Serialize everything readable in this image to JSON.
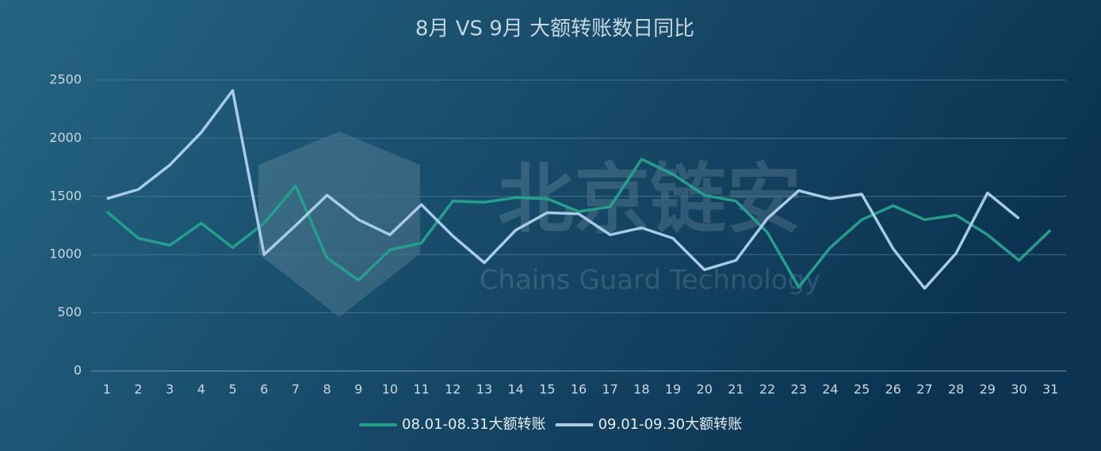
{
  "chart_data": {
    "type": "line",
    "title": "8月 VS 9月 大额转账数日同比",
    "categories": [
      "1",
      "2",
      "3",
      "4",
      "5",
      "6",
      "7",
      "8",
      "9",
      "10",
      "11",
      "12",
      "13",
      "14",
      "15",
      "16",
      "17",
      "18",
      "19",
      "20",
      "21",
      "22",
      "23",
      "24",
      "25",
      "26",
      "27",
      "28",
      "29",
      "30",
      "31"
    ],
    "series": [
      {
        "name": "08.01-08.31大额转账",
        "color": "#23a08a",
        "values": [
          1370,
          1140,
          1080,
          1270,
          1060,
          1270,
          1590,
          970,
          780,
          1040,
          1100,
          1460,
          1450,
          1490,
          1480,
          1370,
          1410,
          1820,
          1690,
          1510,
          1460,
          1190,
          720,
          1060,
          1300,
          1420,
          1300,
          1340,
          1170,
          950,
          1210
        ]
      },
      {
        "name": "09.01-09.30大额转账",
        "color": "#a9cbe8",
        "values": [
          1480,
          1560,
          1770,
          2050,
          2410,
          1000,
          1250,
          1510,
          1300,
          1170,
          1430,
          1160,
          930,
          1210,
          1360,
          1350,
          1170,
          1230,
          1140,
          870,
          950,
          1310,
          1550,
          1480,
          1520,
          1050,
          710,
          1010,
          1530,
          1310,
          null
        ]
      }
    ],
    "ylim": [
      0,
      2500
    ],
    "yticks": [
      0,
      500,
      1000,
      1500,
      2000,
      2500
    ],
    "grid": true,
    "legend": "bottom",
    "watermark": {
      "title": "北京链安",
      "subtitle": "Chains Guard Technology"
    }
  }
}
